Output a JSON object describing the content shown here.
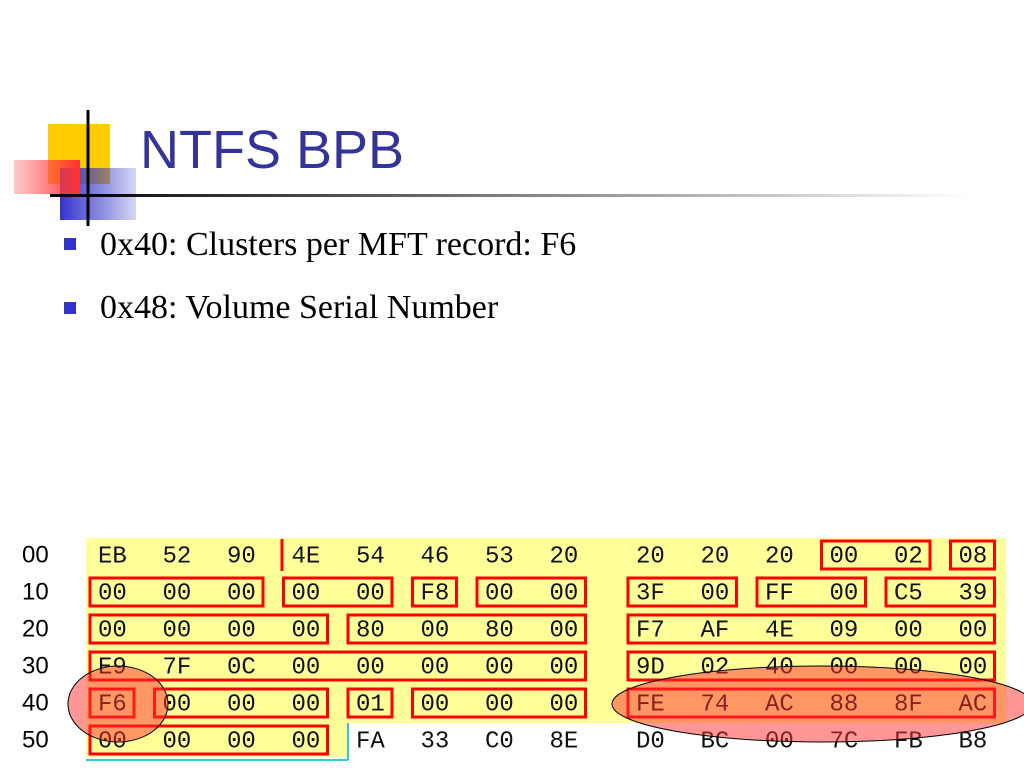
{
  "title": "NTFS BPB",
  "bullets": [
    "0x40: Clusters per MFT record: F6",
    "0x48: Volume Serial Number"
  ],
  "hex": {
    "rows": [
      {
        "offset": "00",
        "bytes": [
          "EB",
          "52",
          "90",
          "4E",
          "54",
          "46",
          "53",
          "20",
          "20",
          "20",
          "20",
          "00",
          "02",
          "08"
        ]
      },
      {
        "offset": "10",
        "bytes": [
          "00",
          "00",
          "00",
          "00",
          "00",
          "F8",
          "00",
          "00",
          "3F",
          "00",
          "FF",
          "00",
          "C5",
          "39"
        ]
      },
      {
        "offset": "20",
        "bytes": [
          "00",
          "00",
          "00",
          "00",
          "80",
          "00",
          "80",
          "00",
          "F7",
          "AF",
          "4E",
          "09",
          "00",
          "00"
        ]
      },
      {
        "offset": "30",
        "bytes": [
          "E9",
          "7F",
          "0C",
          "00",
          "00",
          "00",
          "00",
          "00",
          "9D",
          "02",
          "40",
          "00",
          "00",
          "00"
        ]
      },
      {
        "offset": "40",
        "bytes": [
          "F6",
          "00",
          "00",
          "00",
          "01",
          "00",
          "00",
          "00",
          "FE",
          "74",
          "AC",
          "88",
          "8F",
          "AC"
        ]
      },
      {
        "offset": "50",
        "bytes": [
          "00",
          "00",
          "00",
          "00",
          "FA",
          "33",
          "C0",
          "8E",
          "D0",
          "BC",
          "00",
          "7C",
          "FB",
          "B8"
        ]
      }
    ]
  }
}
